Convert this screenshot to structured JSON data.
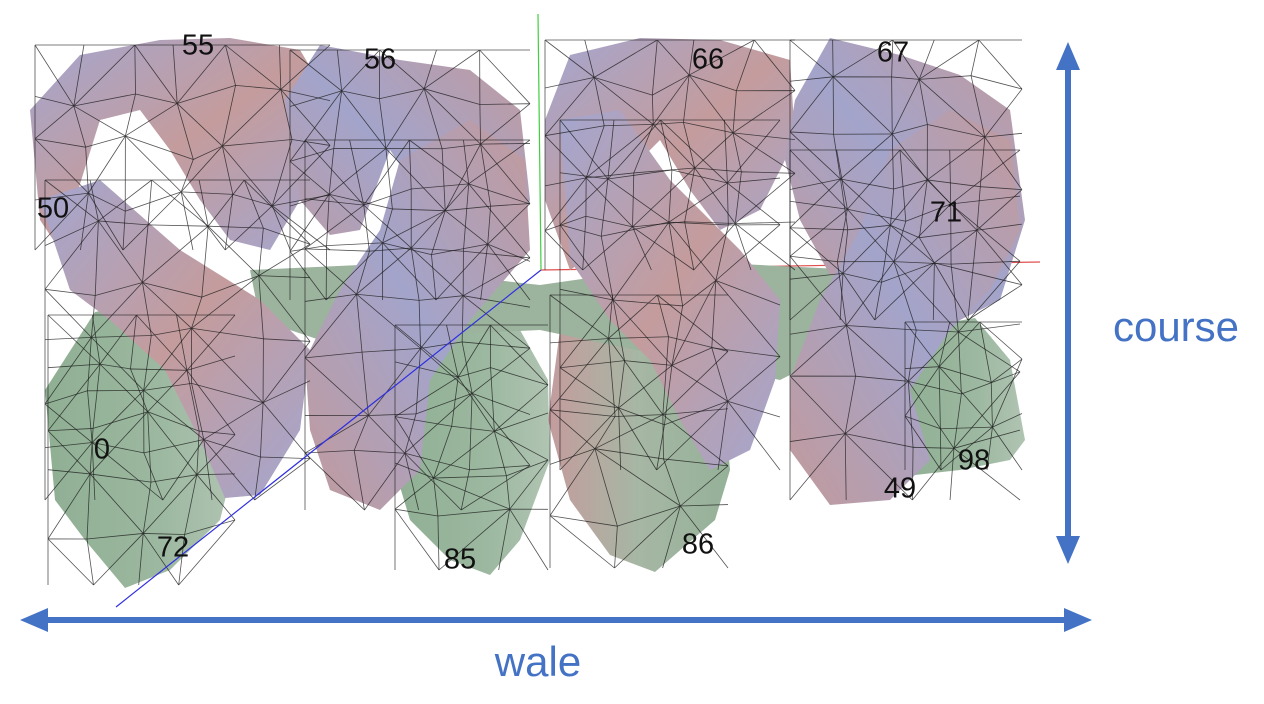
{
  "colors": {
    "arrow": "#4472C4",
    "label_text": "#111111",
    "mesh_stroke": "#1a1a1a",
    "loop_blue": "#9FA2C9",
    "loop_pink": "#C49C9D",
    "loop_green": "#97B39B",
    "scene_axis_green": "#3FCF3F",
    "scene_axis_red": "#E05050",
    "scene_axis_blue": "#3030E0"
  },
  "arrows": {
    "course": {
      "label": "course"
    },
    "wale": {
      "label": "wale"
    }
  },
  "vertex_labels": [
    {
      "id": "label-55",
      "text": "55"
    },
    {
      "id": "label-56",
      "text": "56"
    },
    {
      "id": "label-66",
      "text": "66"
    },
    {
      "id": "label-67",
      "text": "67"
    },
    {
      "id": "label-50",
      "text": "50"
    },
    {
      "id": "label-71",
      "text": "71"
    },
    {
      "id": "label-0",
      "text": "0"
    },
    {
      "id": "label-98",
      "text": "98"
    },
    {
      "id": "label-49",
      "text": "49"
    },
    {
      "id": "label-72",
      "text": "72"
    },
    {
      "id": "label-85",
      "text": "85"
    },
    {
      "id": "label-86",
      "text": "86"
    }
  ]
}
